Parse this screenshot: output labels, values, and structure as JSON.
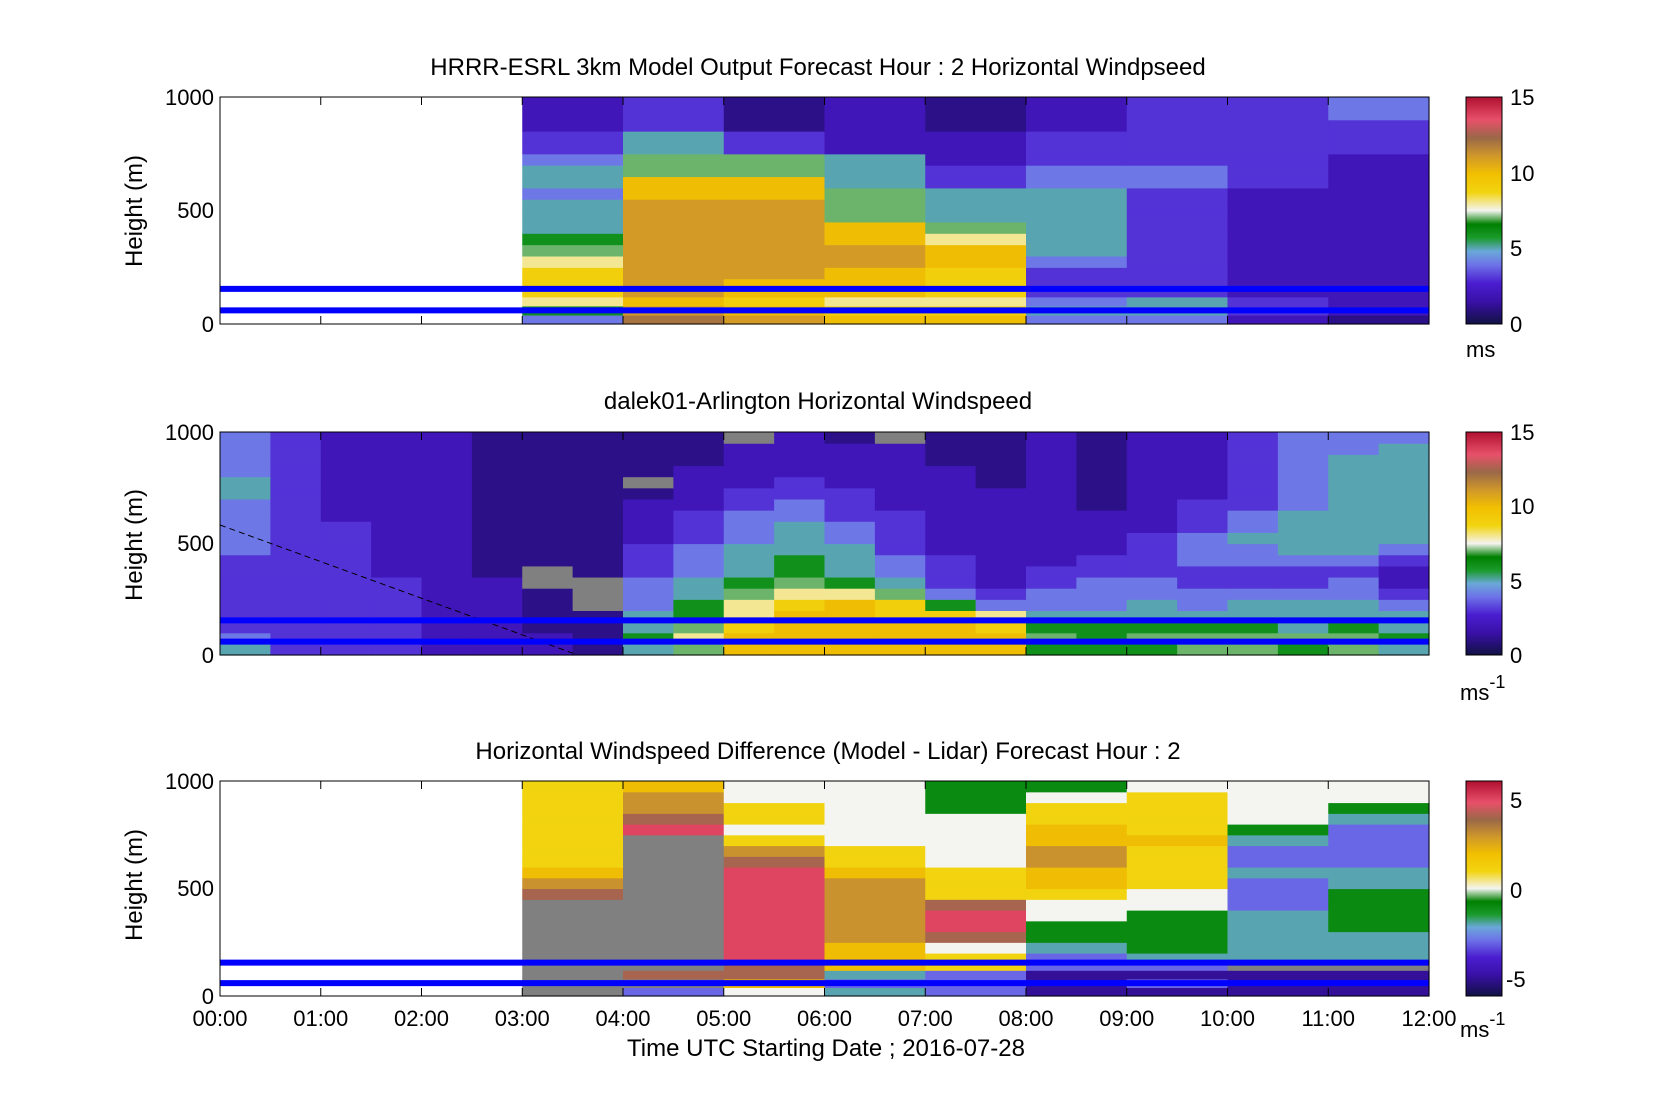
{
  "figure": {
    "xlabel": "Time UTC  Starting Date ; 2016-07-28",
    "x_ticks": [
      "00:00",
      "01:00",
      "02:00",
      "03:00",
      "04:00",
      "05:00",
      "06:00",
      "07:00",
      "08:00",
      "09:00",
      "10:00",
      "11:00",
      "12:00"
    ]
  },
  "colors": {
    "reference_line": "#0000ff",
    "no_data": "#808080"
  },
  "chart_data": [
    {
      "type": "heatmap",
      "title": "HRRR-ESRL 3km Model Output   Forecast Hour : 2 Horizontal Windpseed",
      "ylabel": "Height (m)",
      "xlim": [
        0,
        12
      ],
      "ylim": [
        0,
        1000
      ],
      "y_ticks": [
        "0",
        "500",
        "1000"
      ],
      "colorbar": {
        "range": [
          0,
          15
        ],
        "ticks": [
          "0",
          "5",
          "10",
          "15"
        ],
        "unit": "ms",
        "unit_sup": ""
      },
      "x_hours": [
        3,
        4,
        5,
        6,
        7,
        8,
        9,
        10,
        11
      ],
      "y_heights": [
        0,
        40,
        80,
        120,
        160,
        200,
        250,
        300,
        350,
        400,
        450,
        500,
        550,
        600,
        650,
        700,
        750,
        800,
        850,
        900,
        950
      ],
      "values": [
        [
          4,
          12,
          11,
          10,
          10,
          4,
          4,
          2,
          1
        ],
        [
          6,
          11,
          10,
          9,
          9,
          5,
          5,
          3,
          2
        ],
        [
          8,
          10,
          9,
          8,
          8,
          4,
          5,
          3,
          2
        ],
        [
          9,
          11,
          10,
          10,
          9,
          3,
          3,
          2,
          2
        ],
        [
          9,
          11,
          10,
          10,
          9,
          3,
          3,
          2,
          2
        ],
        [
          9,
          11,
          11,
          10,
          9,
          3,
          3,
          2,
          2
        ],
        [
          8,
          11,
          11,
          11,
          10,
          4,
          3,
          2,
          2
        ],
        [
          7,
          11,
          11,
          11,
          10,
          5,
          3,
          2,
          2
        ],
        [
          6,
          11,
          11,
          10,
          8,
          5,
          3,
          2,
          2
        ],
        [
          5,
          11,
          11,
          10,
          7,
          5,
          3,
          2,
          2
        ],
        [
          5,
          11,
          11,
          7,
          5,
          5,
          3,
          2,
          2
        ],
        [
          5,
          11,
          11,
          7,
          5,
          5,
          3,
          2,
          2
        ],
        [
          4,
          10,
          10,
          7,
          5,
          5,
          3,
          2,
          2
        ],
        [
          5,
          10,
          10,
          5,
          3,
          4,
          4,
          3,
          2
        ],
        [
          5,
          7,
          7,
          5,
          3,
          4,
          4,
          3,
          2
        ],
        [
          4,
          7,
          7,
          5,
          2,
          3,
          3,
          3,
          2
        ],
        [
          3,
          5,
          3,
          2,
          2,
          3,
          3,
          3,
          3
        ],
        [
          3,
          5,
          3,
          2,
          2,
          3,
          3,
          3,
          3
        ],
        [
          2,
          3,
          1,
          2,
          1,
          2,
          3,
          3,
          3
        ],
        [
          2,
          3,
          1,
          2,
          1,
          2,
          3,
          3,
          4
        ],
        [
          2,
          3,
          1,
          2,
          1,
          2,
          3,
          3,
          4
        ]
      ],
      "reference_lines_m": [
        60,
        155
      ]
    },
    {
      "type": "heatmap",
      "title": "dalek01-Arlington  Horizontal Windspeed",
      "ylabel": "Height (m)",
      "xlim": [
        0,
        12
      ],
      "ylim": [
        0,
        1000
      ],
      "y_ticks": [
        "0",
        "500",
        "1000"
      ],
      "colorbar": {
        "range": [
          0,
          15
        ],
        "ticks": [
          "0",
          "5",
          "10",
          "15"
        ],
        "unit": "ms",
        "unit_sup": "-1"
      },
      "x_hours": [
        0,
        0.5,
        1,
        1.5,
        2,
        2.5,
        3,
        3.5,
        4,
        4.5,
        5,
        5.5,
        6,
        6.5,
        7,
        7.5,
        8,
        8.5,
        9,
        9.5,
        10,
        10.5,
        11,
        11.5
      ],
      "y_heights": [
        0,
        50,
        100,
        150,
        200,
        250,
        300,
        350,
        400,
        450,
        500,
        550,
        600,
        650,
        700,
        750,
        800,
        850,
        900,
        950
      ],
      "values": [
        [
          5,
          3,
          3,
          3,
          2,
          2,
          2,
          1,
          5,
          7,
          10,
          10,
          10,
          10,
          10,
          10,
          6,
          6,
          6,
          7,
          7,
          6,
          7,
          5
        ],
        [
          4,
          3,
          3,
          3,
          2,
          2,
          2,
          1,
          6,
          8,
          10,
          10,
          10,
          10,
          10,
          10,
          7,
          6,
          7,
          7,
          7,
          7,
          7,
          6
        ],
        [
          3,
          3,
          3,
          3,
          2,
          2,
          1,
          1,
          5,
          7,
          9,
          10,
          10,
          10,
          10,
          9,
          6,
          6,
          6,
          6,
          6,
          5,
          6,
          5
        ],
        [
          3,
          3,
          3,
          3,
          2,
          2,
          1,
          1,
          5,
          6,
          8,
          10,
          10,
          9,
          9,
          8,
          5,
          5,
          5,
          5,
          5,
          5,
          5,
          5
        ],
        [
          3,
          3,
          3,
          3,
          2,
          2,
          1,
          null,
          4,
          6,
          8,
          9,
          10,
          9,
          6,
          4,
          4,
          4,
          5,
          4,
          5,
          5,
          5,
          4
        ],
        [
          3,
          3,
          3,
          3,
          2,
          2,
          1,
          null,
          4,
          5,
          7,
          8,
          8,
          7,
          4,
          3,
          4,
          4,
          4,
          4,
          4,
          4,
          4,
          3
        ],
        [
          3,
          3,
          3,
          3,
          2,
          2,
          null,
          null,
          4,
          5,
          6,
          7,
          6,
          5,
          3,
          2,
          3,
          4,
          4,
          3,
          3,
          3,
          4,
          2
        ],
        [
          3,
          3,
          3,
          2,
          2,
          1,
          null,
          1,
          3,
          4,
          5,
          6,
          5,
          4,
          3,
          2,
          3,
          3,
          3,
          3,
          3,
          3,
          3,
          2
        ],
        [
          3,
          3,
          3,
          2,
          2,
          1,
          1,
          1,
          3,
          4,
          5,
          6,
          5,
          4,
          3,
          2,
          2,
          3,
          3,
          4,
          4,
          4,
          4,
          3
        ],
        [
          4,
          3,
          3,
          2,
          2,
          1,
          1,
          1,
          3,
          4,
          5,
          5,
          5,
          3,
          2,
          2,
          2,
          2,
          3,
          4,
          4,
          5,
          5,
          4
        ],
        [
          4,
          3,
          3,
          2,
          2,
          1,
          1,
          1,
          2,
          3,
          4,
          5,
          4,
          3,
          2,
          2,
          2,
          2,
          3,
          4,
          5,
          5,
          5,
          5
        ],
        [
          4,
          3,
          3,
          2,
          2,
          1,
          1,
          1,
          2,
          3,
          4,
          5,
          4,
          3,
          2,
          2,
          2,
          2,
          2,
          3,
          4,
          5,
          5,
          5
        ],
        [
          4,
          3,
          2,
          2,
          2,
          1,
          1,
          1,
          2,
          3,
          4,
          4,
          3,
          3,
          2,
          2,
          2,
          2,
          2,
          3,
          4,
          5,
          5,
          5
        ],
        [
          4,
          3,
          2,
          2,
          2,
          1,
          1,
          1,
          2,
          2,
          3,
          4,
          3,
          2,
          2,
          2,
          2,
          1,
          2,
          3,
          3,
          4,
          5,
          5
        ],
        [
          5,
          3,
          2,
          2,
          2,
          1,
          1,
          1,
          1,
          2,
          3,
          3,
          3,
          2,
          2,
          2,
          2,
          1,
          2,
          2,
          3,
          4,
          5,
          5
        ],
        [
          5,
          3,
          2,
          2,
          2,
          1,
          1,
          1,
          null,
          2,
          2,
          3,
          2,
          2,
          2,
          1,
          2,
          1,
          2,
          2,
          3,
          4,
          5,
          5
        ],
        [
          4,
          3,
          2,
          2,
          2,
          1,
          1,
          1,
          1,
          2,
          2,
          2,
          2,
          2,
          2,
          1,
          2,
          1,
          2,
          2,
          3,
          4,
          5,
          5
        ],
        [
          4,
          3,
          2,
          2,
          2,
          1,
          1,
          1,
          1,
          1,
          2,
          2,
          2,
          2,
          1,
          1,
          2,
          1,
          2,
          2,
          3,
          4,
          5,
          5
        ],
        [
          4,
          3,
          2,
          2,
          2,
          1,
          1,
          1,
          1,
          1,
          2,
          2,
          2,
          2,
          1,
          1,
          2,
          1,
          2,
          2,
          3,
          4,
          4,
          5
        ],
        [
          4,
          3,
          2,
          2,
          2,
          1,
          1,
          1,
          1,
          1,
          null,
          2,
          1,
          null,
          1,
          1,
          2,
          1,
          2,
          2,
          3,
          4,
          4,
          4
        ]
      ],
      "reference_lines_m": [
        60,
        155
      ]
    },
    {
      "type": "heatmap",
      "title": "Horizontal Windspeed Difference (Model - Lidar) Forecast Hour : 2",
      "ylabel": "Height (m)",
      "xlim": [
        0,
        12
      ],
      "ylim": [
        0,
        1000
      ],
      "y_ticks": [
        "0",
        "500",
        "1000"
      ],
      "colorbar": {
        "range": [
          -6,
          6
        ],
        "ticks": [
          "-5",
          "0",
          "5"
        ],
        "unit": "ms",
        "unit_sup": "-1"
      },
      "x_hours": [
        3,
        4,
        5,
        6,
        7,
        8,
        9,
        10,
        11
      ],
      "y_heights": [
        0,
        40,
        80,
        120,
        160,
        200,
        250,
        300,
        350,
        400,
        450,
        500,
        550,
        600,
        650,
        700,
        750,
        800,
        850,
        900,
        950
      ],
      "values": [
        [
          null,
          -3,
          0,
          -2,
          -3,
          -5,
          -5,
          -5,
          -5
        ],
        [
          null,
          null,
          2,
          -3,
          -3,
          -5,
          -3,
          -5,
          -5
        ],
        [
          null,
          4,
          4,
          -2,
          -3,
          -5,
          -5,
          -5,
          -5
        ],
        [
          null,
          null,
          4,
          2,
          1,
          -3,
          -3,
          null,
          null
        ],
        [
          null,
          null,
          5,
          2,
          1,
          -3,
          -2,
          -2,
          -2
        ],
        [
          null,
          null,
          5,
          2,
          0,
          -2,
          -1,
          -2,
          -2
        ],
        [
          null,
          null,
          5,
          3,
          4,
          -1,
          -1,
          -2,
          -2
        ],
        [
          null,
          null,
          5,
          3,
          5,
          -1,
          -1,
          -2,
          -1
        ],
        [
          null,
          null,
          5,
          3,
          5,
          0,
          -1,
          -2,
          -1
        ],
        [
          null,
          null,
          5,
          3,
          4,
          0,
          0,
          -3,
          -1
        ],
        [
          4,
          null,
          5,
          3,
          1,
          1,
          0,
          -3,
          -1
        ],
        [
          3,
          null,
          5,
          3,
          1,
          2,
          1,
          -3,
          -2
        ],
        [
          2,
          null,
          5,
          2,
          1,
          2,
          1,
          -2,
          -2
        ],
        [
          1,
          null,
          4,
          1,
          0,
          3,
          1,
          -3,
          -3
        ],
        [
          1,
          null,
          3,
          1,
          0,
          3,
          1,
          -3,
          -3
        ],
        [
          1,
          null,
          1,
          0,
          0,
          2,
          2,
          -2,
          -3
        ],
        [
          1,
          5,
          0,
          0,
          0,
          2,
          1,
          -1,
          -3
        ],
        [
          1,
          4,
          1,
          0,
          0,
          1,
          1,
          0,
          -2
        ],
        [
          1,
          3,
          1,
          0,
          -1,
          1,
          1,
          0,
          -1
        ],
        [
          1,
          3,
          0,
          0,
          -1,
          0,
          1,
          0,
          0
        ],
        [
          1,
          2,
          0,
          0,
          -1,
          -1,
          0,
          0,
          0
        ]
      ],
      "reference_lines_m": [
        60,
        155
      ]
    }
  ]
}
